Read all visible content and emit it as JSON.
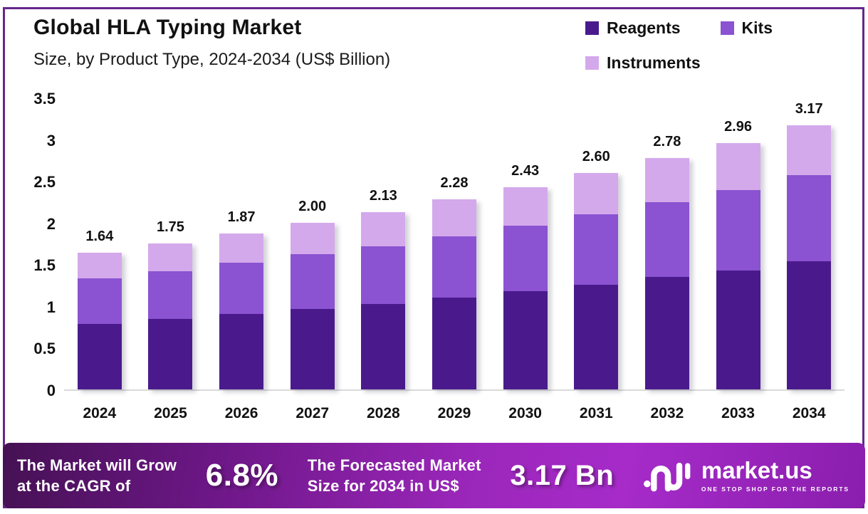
{
  "header": {
    "title": "Global HLA Typing Market",
    "subtitle": "Size, by Product Type, 2024-2034 (US$ Billion)"
  },
  "colors": {
    "reagents": "#4A1A8C",
    "kits": "#8B52D1",
    "instruments": "#D4A9EC",
    "frame_border": "#66278C",
    "footer_gradient_start": "#451153",
    "footer_gradient_end": "#A62BC9"
  },
  "chart_data": {
    "type": "bar",
    "stacked": true,
    "title": "Global HLA Typing Market Size, by Product Type, 2024-2034 (US$ Billion)",
    "xlabel": "",
    "ylabel": "US$ Billion",
    "ylim": [
      0,
      3.5
    ],
    "y_ticks": [
      "3.5",
      "3",
      "2.5",
      "2",
      "1.5",
      "1",
      "0.5",
      "0"
    ],
    "grid": false,
    "legend_position": "top-right",
    "categories": [
      "2024",
      "2025",
      "2026",
      "2027",
      "2028",
      "2029",
      "2030",
      "2031",
      "2032",
      "2033",
      "2034"
    ],
    "series": [
      {
        "name": "Reagents",
        "color": "#4A1A8C",
        "values": [
          0.79,
          0.85,
          0.91,
          0.97,
          1.03,
          1.1,
          1.18,
          1.26,
          1.35,
          1.43,
          1.54
        ]
      },
      {
        "name": "Kits",
        "color": "#8B52D1",
        "values": [
          0.54,
          0.57,
          0.61,
          0.65,
          0.69,
          0.74,
          0.79,
          0.84,
          0.9,
          0.96,
          1.03
        ]
      },
      {
        "name": "Instruments",
        "color": "#D4A9EC",
        "values": [
          0.31,
          0.33,
          0.35,
          0.38,
          0.41,
          0.44,
          0.46,
          0.5,
          0.53,
          0.57,
          0.6
        ]
      }
    ],
    "totals": [
      1.64,
      1.75,
      1.87,
      2.0,
      2.13,
      2.28,
      2.43,
      2.6,
      2.78,
      2.96,
      3.17
    ],
    "total_labels": [
      "1.64",
      "1.75",
      "1.87",
      "2.00",
      "2.13",
      "2.28",
      "2.43",
      "2.60",
      "2.78",
      "2.96",
      "3.17"
    ]
  },
  "footer": {
    "cagr_label_line1": "The Market will Grow",
    "cagr_label_line2": "at the CAGR of",
    "cagr_value": "6.8%",
    "forecast_label_line1": "The Forecasted Market",
    "forecast_label_line2": "Size for 2034 in US$",
    "forecast_value": "3.17 Bn",
    "brand_name": "market.us",
    "brand_tagline": "One Stop Shop For The Reports"
  }
}
